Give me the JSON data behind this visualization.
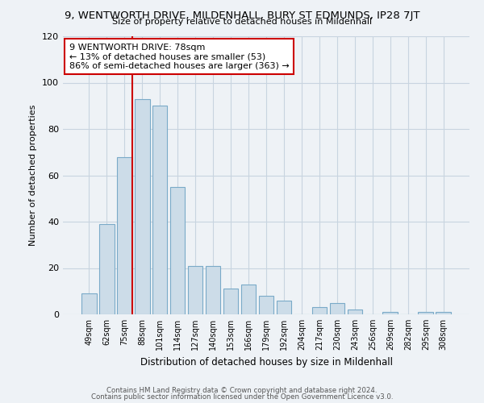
{
  "title": "9, WENTWORTH DRIVE, MILDENHALL, BURY ST EDMUNDS, IP28 7JT",
  "subtitle": "Size of property relative to detached houses in Mildenhall",
  "xlabel": "Distribution of detached houses by size in Mildenhall",
  "ylabel": "Number of detached properties",
  "categories": [
    "49sqm",
    "62sqm",
    "75sqm",
    "88sqm",
    "101sqm",
    "114sqm",
    "127sqm",
    "140sqm",
    "153sqm",
    "166sqm",
    "179sqm",
    "192sqm",
    "204sqm",
    "217sqm",
    "230sqm",
    "243sqm",
    "256sqm",
    "269sqm",
    "282sqm",
    "295sqm",
    "308sqm"
  ],
  "values": [
    9,
    39,
    68,
    93,
    90,
    55,
    21,
    21,
    11,
    13,
    8,
    6,
    0,
    3,
    5,
    2,
    0,
    1,
    0,
    1,
    1
  ],
  "bar_color": "#ccdce8",
  "bar_edge_color": "#7aaac8",
  "vline_color": "#cc0000",
  "annotation_lines": [
    "9 WENTWORTH DRIVE: 78sqm",
    "← 13% of detached houses are smaller (53)",
    "86% of semi-detached houses are larger (363) →"
  ],
  "ylim": [
    0,
    120
  ],
  "yticks": [
    0,
    20,
    40,
    60,
    80,
    100,
    120
  ],
  "footer1": "Contains HM Land Registry data © Crown copyright and database right 2024.",
  "footer2": "Contains public sector information licensed under the Open Government Licence v3.0.",
  "bg_color": "#eef2f6",
  "plot_bg_color": "#eef2f6",
  "grid_color": "#c8d4e0"
}
